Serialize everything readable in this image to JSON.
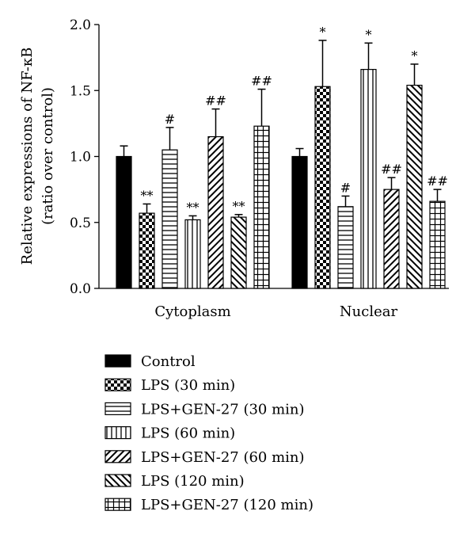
{
  "chart_data": {
    "type": "bar",
    "ylabel": "Relative expressions of NF-κB",
    "ylabel_sub": "(ratio over control)",
    "xlabel": "",
    "ylim": [
      0,
      2.0
    ],
    "yticks": [
      "0.0",
      "0.5",
      "1.0",
      "1.5",
      "2.0"
    ],
    "categories": [
      "Cytoplasm",
      "Nuclear"
    ],
    "series": [
      {
        "name": "Control",
        "pattern": "solid",
        "values": [
          1.0,
          1.0
        ],
        "errors": [
          0.08,
          0.06
        ],
        "sig": [
          "",
          ""
        ]
      },
      {
        "name": "LPS (30 min)",
        "pattern": "checker",
        "values": [
          0.57,
          1.53
        ],
        "errors": [
          0.07,
          0.35
        ],
        "sig": [
          "**",
          "*"
        ]
      },
      {
        "name": "LPS+GEN-27 (30 min)",
        "pattern": "hlines",
        "values": [
          1.05,
          0.62
        ],
        "errors": [
          0.17,
          0.08
        ],
        "sig": [
          "#",
          "#"
        ]
      },
      {
        "name": "LPS (60 min)",
        "pattern": "vlines",
        "values": [
          0.52,
          1.66
        ],
        "errors": [
          0.03,
          0.2
        ],
        "sig": [
          "**",
          "*"
        ]
      },
      {
        "name": "LPS+GEN-27 (60 min)",
        "pattern": "diag-fwd",
        "values": [
          1.15,
          0.75
        ],
        "errors": [
          0.21,
          0.09
        ],
        "sig": [
          "##",
          "##"
        ]
      },
      {
        "name": "LPS (120 min)",
        "pattern": "diag-back",
        "values": [
          0.54,
          1.54
        ],
        "errors": [
          0.02,
          0.16
        ],
        "sig": [
          "**",
          "*"
        ]
      },
      {
        "name": "LPS+GEN-27 (120 min)",
        "pattern": "grid",
        "values": [
          1.23,
          0.66
        ],
        "errors": [
          0.28,
          0.09
        ],
        "sig": [
          "##",
          "##"
        ]
      }
    ],
    "legend_position": "bottom"
  }
}
